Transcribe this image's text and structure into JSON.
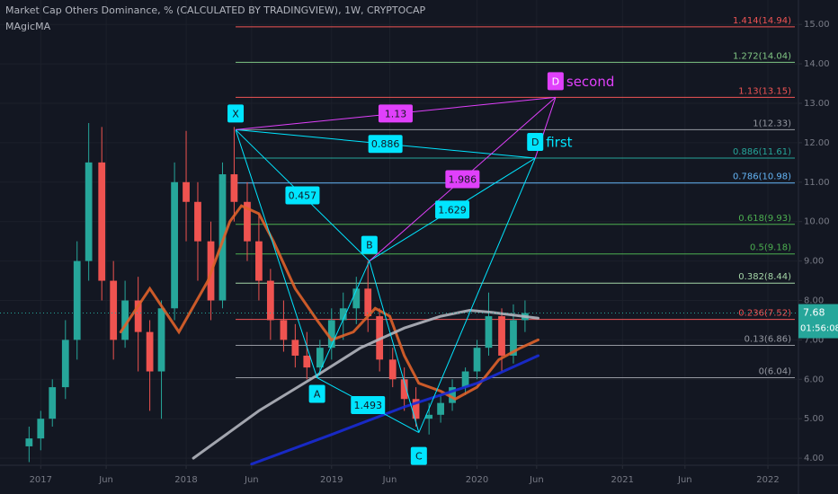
{
  "chart_data": {
    "type": "candlestick",
    "title": "Market Cap Others Dominance, % (CALCULATED BY TRADINGVIEW), 1W, CRYPTOCAP",
    "indicator": "MAgicMA",
    "xlim": [
      2016.72,
      2022.21
    ],
    "xticks": [
      {
        "value": 2017,
        "label": "2017"
      },
      {
        "value": 2017.45,
        "label": "Jun"
      },
      {
        "value": 2018,
        "label": "2018"
      },
      {
        "value": 2018.45,
        "label": "Jun"
      },
      {
        "value": 2019,
        "label": "2019"
      },
      {
        "value": 2019.4,
        "label": "Jun"
      },
      {
        "value": 2020,
        "label": "2020"
      },
      {
        "value": 2020.41,
        "label": "Jun"
      },
      {
        "value": 2021,
        "label": "2021"
      },
      {
        "value": 2021.43,
        "label": "Jun"
      },
      {
        "value": 2022,
        "label": "2022"
      }
    ],
    "ylim": [
      3.82,
      15.62
    ],
    "yticks": [
      {
        "value": 4,
        "label": "4.00"
      },
      {
        "value": 5,
        "label": "5.00"
      },
      {
        "value": 6,
        "label": "6.00"
      },
      {
        "value": 7,
        "label": "7.00"
      },
      {
        "value": 8,
        "label": "8.00"
      },
      {
        "value": 9,
        "label": "9.00"
      },
      {
        "value": 10,
        "label": "10.00"
      },
      {
        "value": 11,
        "label": "11.00"
      },
      {
        "value": 12,
        "label": "12.00"
      },
      {
        "value": 13,
        "label": "13.00"
      },
      {
        "value": 14,
        "label": "14.00"
      },
      {
        "value": 15,
        "label": "15.00"
      }
    ],
    "grid": true,
    "up_color": "#26a69a",
    "down_color": "#ef5350",
    "candles": {
      "x": [
        2016.92,
        2017.0,
        2017.08,
        2017.17,
        2017.25,
        2017.33,
        2017.42,
        2017.5,
        2017.58,
        2017.67,
        2017.75,
        2017.83,
        2017.92,
        2018.0,
        2018.08,
        2018.17,
        2018.25,
        2018.33,
        2018.42,
        2018.5,
        2018.58,
        2018.67,
        2018.75,
        2018.83,
        2018.92,
        2019.0,
        2019.08,
        2019.17,
        2019.25,
        2019.33,
        2019.42,
        2019.5,
        2019.58,
        2019.67,
        2019.75,
        2019.83,
        2019.92,
        2020.0,
        2020.08,
        2020.17,
        2020.25,
        2020.33
      ],
      "ohlc": [
        [
          4.3,
          4.8,
          3.9,
          4.5
        ],
        [
          4.5,
          5.2,
          4.2,
          5.0
        ],
        [
          5.0,
          6.0,
          4.8,
          5.8
        ],
        [
          5.8,
          7.5,
          5.5,
          7.0
        ],
        [
          7.0,
          9.5,
          6.5,
          9.0
        ],
        [
          9.0,
          12.5,
          8.5,
          11.5
        ],
        [
          11.5,
          12.4,
          8.0,
          8.5
        ],
        [
          8.5,
          9.0,
          6.5,
          7.0
        ],
        [
          7.0,
          8.5,
          6.8,
          8.0
        ],
        [
          8.0,
          8.6,
          6.2,
          7.2
        ],
        [
          7.2,
          7.5,
          5.2,
          6.2
        ],
        [
          6.2,
          8.0,
          5.0,
          7.8
        ],
        [
          7.8,
          11.5,
          7.5,
          11.0
        ],
        [
          11.0,
          12.3,
          9.5,
          10.5
        ],
        [
          10.5,
          11.0,
          8.5,
          9.5
        ],
        [
          9.5,
          10.0,
          7.5,
          8.0
        ],
        [
          8.0,
          11.5,
          7.8,
          11.2
        ],
        [
          11.2,
          12.4,
          10.0,
          10.5
        ],
        [
          10.5,
          11.0,
          9.0,
          9.5
        ],
        [
          9.5,
          10.2,
          8.0,
          8.5
        ],
        [
          8.5,
          8.8,
          7.0,
          7.5
        ],
        [
          7.5,
          8.0,
          6.7,
          7.0
        ],
        [
          7.0,
          7.4,
          6.3,
          6.6
        ],
        [
          6.6,
          7.2,
          6.0,
          6.3
        ],
        [
          6.3,
          7.0,
          6.1,
          6.8
        ],
        [
          6.8,
          7.8,
          6.5,
          7.5
        ],
        [
          7.5,
          8.2,
          7.0,
          7.8
        ],
        [
          7.8,
          8.6,
          7.4,
          8.3
        ],
        [
          8.3,
          9.0,
          7.2,
          7.6
        ],
        [
          7.6,
          7.8,
          6.2,
          6.5
        ],
        [
          6.5,
          6.8,
          5.8,
          6.0
        ],
        [
          6.0,
          6.3,
          5.2,
          5.5
        ],
        [
          5.5,
          5.8,
          4.8,
          5.0
        ],
        [
          5.0,
          5.4,
          4.6,
          5.1
        ],
        [
          5.1,
          5.6,
          4.9,
          5.4
        ],
        [
          5.4,
          6.0,
          5.2,
          5.8
        ],
        [
          5.8,
          6.3,
          5.6,
          6.2
        ],
        [
          6.2,
          7.0,
          6.0,
          6.8
        ],
        [
          6.8,
          8.2,
          6.6,
          7.6
        ],
        [
          7.6,
          7.8,
          6.2,
          6.6
        ],
        [
          6.6,
          7.9,
          6.4,
          7.5
        ],
        [
          7.5,
          8.0,
          7.2,
          7.68
        ]
      ]
    },
    "moving_averages": [
      {
        "color": "#e0622a",
        "x": [
          2017.55,
          2017.75,
          2017.95,
          2018.15,
          2018.3,
          2018.38,
          2018.5,
          2018.6,
          2018.75,
          2018.9,
          2019.0,
          2019.15,
          2019.3,
          2019.4,
          2019.5,
          2019.6,
          2019.75,
          2019.85,
          2020.0,
          2020.15,
          2020.3,
          2020.42
        ],
        "values": [
          7.2,
          8.3,
          7.2,
          8.5,
          10.0,
          10.4,
          10.2,
          9.5,
          8.3,
          7.5,
          7.0,
          7.2,
          7.8,
          7.6,
          6.6,
          5.9,
          5.7,
          5.5,
          5.8,
          6.5,
          6.8,
          7.0
        ]
      },
      {
        "color": "#b2b5be",
        "x": [
          2018.05,
          2018.5,
          2018.9,
          2019.2,
          2019.5,
          2019.75,
          2019.95,
          2020.1,
          2020.42
        ],
        "values": [
          4.0,
          5.2,
          6.1,
          6.8,
          7.3,
          7.6,
          7.75,
          7.7,
          7.55
        ]
      },
      {
        "color": "#1a2bd6",
        "x": [
          2018.45,
          2019.0,
          2019.5,
          2020.0,
          2020.42
        ],
        "values": [
          3.85,
          4.6,
          5.3,
          5.9,
          6.6
        ]
      }
    ],
    "fib_levels": [
      {
        "label": "1.414(14.94)",
        "value": 14.94,
        "color": "#f05454"
      },
      {
        "label": "1.272(14.04)",
        "value": 14.04,
        "color": "#81c784"
      },
      {
        "label": "1.13(13.15)",
        "value": 13.15,
        "color": "#f05454"
      },
      {
        "label": "1(12.33)",
        "value": 12.33,
        "color": "#9598a1"
      },
      {
        "label": "0.886(11.61)",
        "value": 11.61,
        "color": "#26a69a"
      },
      {
        "label": "0.786(10.98)",
        "value": 10.98,
        "color": "#64b5f6"
      },
      {
        "label": "0.618(9.93)",
        "value": 9.93,
        "color": "#4caf50"
      },
      {
        "label": "0.5(9.18)",
        "value": 9.18,
        "color": "#4caf50"
      },
      {
        "label": "0.382(8.44)",
        "value": 8.44,
        "color": "#a5d6a7"
      },
      {
        "label": "0.236(7.52)",
        "value": 7.52,
        "color": "#f05454"
      },
      {
        "label": "0.13(6.86)",
        "value": 6.86,
        "color": "#9598a1"
      },
      {
        "label": "0(6.04)",
        "value": 6.04,
        "color": "#9598a1"
      }
    ],
    "pattern_points": [
      {
        "label": "X",
        "x": 2018.34,
        "y": 12.33,
        "color": "#00e5ff"
      },
      {
        "label": "A",
        "x": 2018.9,
        "y": 6.04,
        "color": "#00e5ff"
      },
      {
        "label": "B",
        "x": 2019.26,
        "y": 9.0,
        "color": "#00e5ff"
      },
      {
        "label": "C",
        "x": 2019.6,
        "y": 4.65,
        "color": "#00e5ff"
      },
      {
        "label": "D",
        "note": "first",
        "x": 2020.4,
        "y": 11.61,
        "color": "#00e5ff"
      },
      {
        "label": "D",
        "note": "second",
        "x": 2020.54,
        "y": 13.15,
        "color": "#e040fb"
      }
    ],
    "ratios": [
      {
        "value": 0.457,
        "color": "#00e5ff"
      },
      {
        "value": 1.13,
        "color": "#e040fb"
      },
      {
        "value": 0.886,
        "color": "#00e5ff"
      },
      {
        "value": 1.986,
        "color": "#e040fb"
      },
      {
        "value": 1.629,
        "color": "#00e5ff"
      },
      {
        "value": 1.493,
        "color": "#00e5ff"
      }
    ],
    "last_price": 7.68,
    "countdown": "01:56:08"
  }
}
